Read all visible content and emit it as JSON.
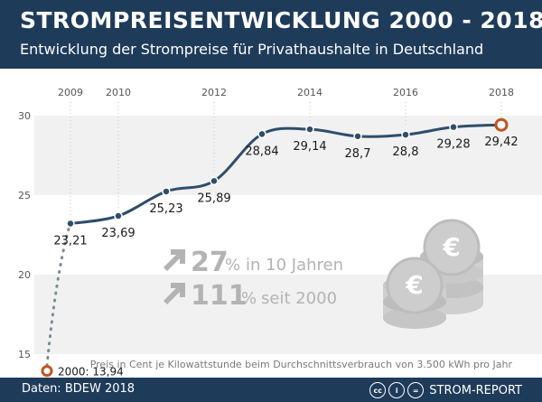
{
  "header": {
    "title": "STROMPREISENTWICKLUNG 2000 - 2018",
    "subtitle": "Entwicklung der Strompreise für Privathaushalte in Deutschland"
  },
  "footer": {
    "source": "Daten: BDEW 2018",
    "brand": "STROM-REPORT",
    "license_icons": [
      "cc-icon",
      "by-icon",
      "nd-icon"
    ]
  },
  "colors": {
    "header_bg": "#1f3b5a",
    "line": "#2f4d6c",
    "highlight_marker": "#c0561f",
    "band": "#f1f1f1",
    "stat_text": "#b3b3b3"
  },
  "stats": [
    {
      "big": "27",
      "unit": "%",
      "text": "in 10 Jahren"
    },
    {
      "big": "111",
      "unit": "%",
      "text": "seit 2000"
    }
  ],
  "chart_data": {
    "type": "line",
    "title": "STROMPREISENTWICKLUNG 2000 - 2018",
    "subtitle": "Entwicklung der Strompreise für Privathaushalte in Deutschland",
    "note": "Preis in Cent je Kilowattstunde beim Durchschnittsverbrauch von 3.500 kWh pro Jahr",
    "xlabel": "",
    "ylabel": "",
    "ylim": [
      15,
      30
    ],
    "yticks": [
      "15",
      "20",
      "25",
      "30"
    ],
    "x_ticks": [
      "2009",
      "2010",
      "2012",
      "2014",
      "2016",
      "2018"
    ],
    "x_tick_years": [
      2009,
      2010,
      2012,
      2014,
      2016,
      2018
    ],
    "grid": false,
    "bands": true,
    "start_point": {
      "year": 2000,
      "value": 13.94,
      "label": "2000: 13,94"
    },
    "points": [
      {
        "year": 2009,
        "value": 23.21,
        "label": "23,21"
      },
      {
        "year": 2010,
        "value": 23.69,
        "label": "23,69"
      },
      {
        "year": 2011,
        "value": 25.23,
        "label": "25,23"
      },
      {
        "year": 2012,
        "value": 25.89,
        "label": "25,89"
      },
      {
        "year": 2013,
        "value": 28.84,
        "label": "28,84"
      },
      {
        "year": 2014,
        "value": 29.14,
        "label": "29,14"
      },
      {
        "year": 2015,
        "value": 28.7,
        "label": "28,7"
      },
      {
        "year": 2016,
        "value": 28.8,
        "label": "28,8"
      },
      {
        "year": 2017,
        "value": 29.28,
        "label": "29,28"
      },
      {
        "year": 2018,
        "value": 29.42,
        "label": "29,42"
      }
    ]
  }
}
